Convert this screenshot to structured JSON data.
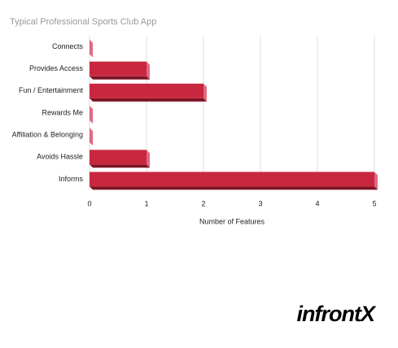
{
  "chart_data": {
    "type": "bar",
    "orientation": "horizontal",
    "title": "Typical Professional Sports Club App",
    "x_label": "Number of Features",
    "categories": [
      "Connects",
      "Provides Access",
      "Fun / Entertainment",
      "Rewards Me",
      "Affiliation & Belonging",
      "Avoids Hassle",
      "Informs"
    ],
    "values": [
      0,
      1,
      2,
      0,
      0,
      1,
      5
    ],
    "color": "#c8283f",
    "xlim": [
      0,
      5
    ],
    "xticks": [
      0,
      1,
      2,
      3,
      4,
      5
    ],
    "grid": true
  },
  "logo": "infrontX"
}
